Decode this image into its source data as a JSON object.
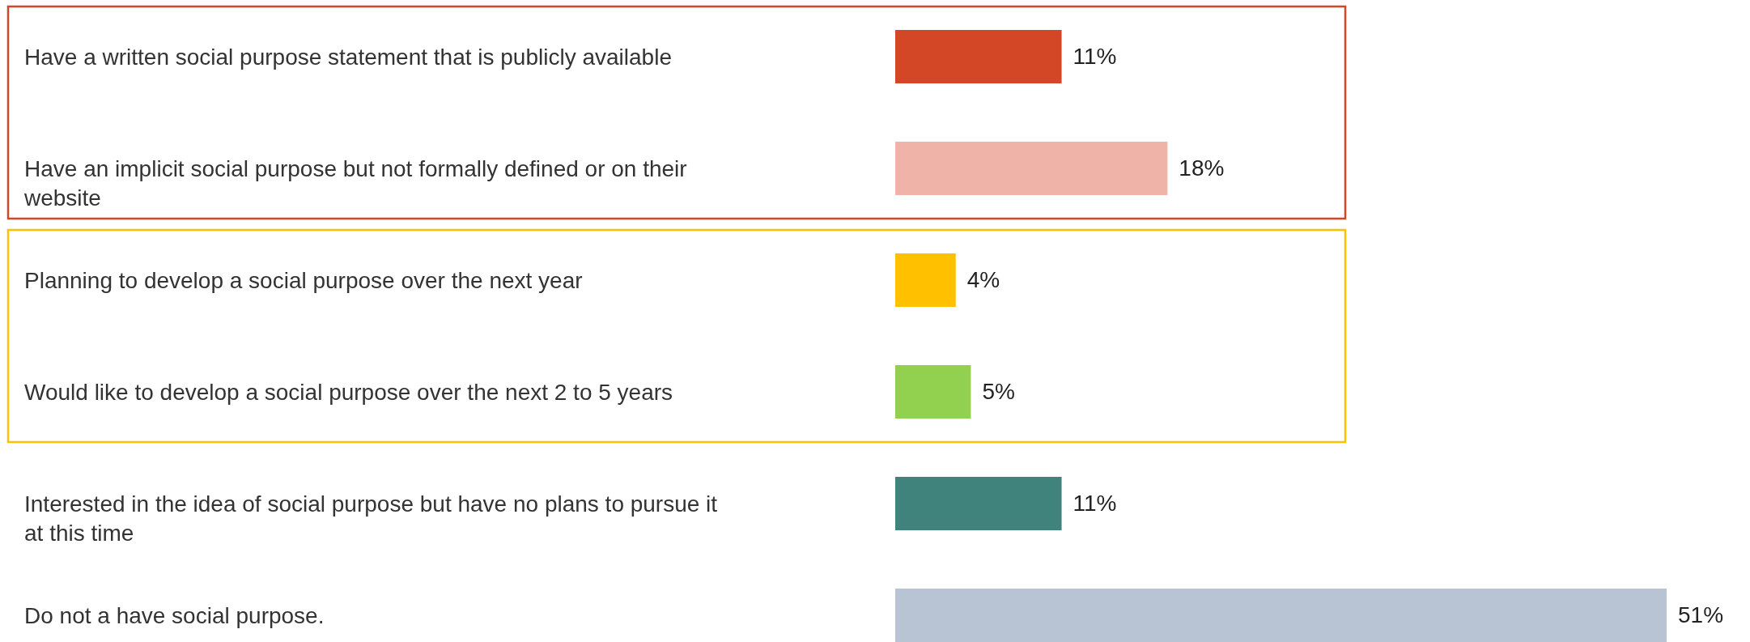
{
  "chart_data": {
    "type": "bar",
    "orientation": "horizontal",
    "categories": [
      "Have a written social purpose statement that is publicly available",
      "Have an implicit social purpose but not formally defined or on their website",
      "Planning to develop a social purpose over the next year",
      "Would like to develop a social purpose over the next 2 to 5 years",
      "Interested in the idea of social purpose but have no plans to pursue it at this time",
      "Do not a have social purpose."
    ],
    "values": [
      11,
      18,
      4,
      5,
      11,
      51
    ],
    "colors": [
      "#d34727",
      "#f0b3a8",
      "#ffc000",
      "#92d050",
      "#40837d",
      "#b8c4d3"
    ],
    "value_labels": [
      "11%",
      "18%",
      "4%",
      "5%",
      "11%",
      "51%"
    ],
    "xlim": [
      0,
      51
    ],
    "tick_labels": "y"
  }
}
